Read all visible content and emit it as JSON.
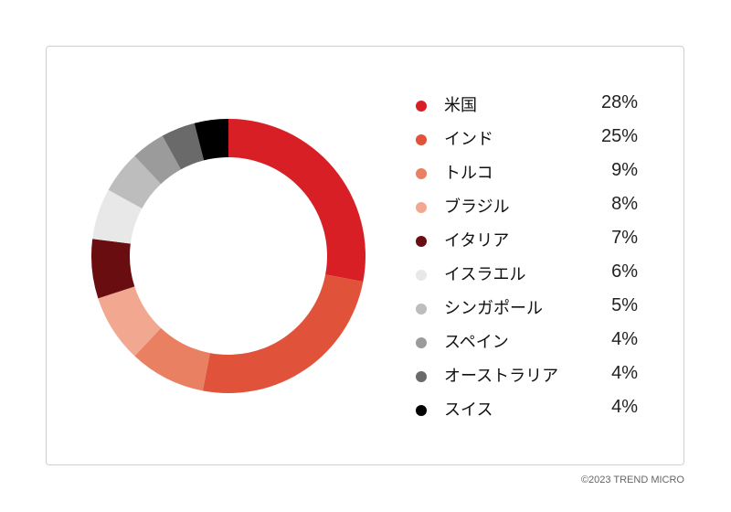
{
  "copyright": "©2023 TREND MICRO",
  "chart_data": {
    "type": "pie",
    "categories": [
      "米国",
      "インド",
      "トルコ",
      "ブラジル",
      "イタリア",
      "イスラエル",
      "シンガポール",
      "スペイン",
      "オーストラリア",
      "スイス"
    ],
    "values": [
      28,
      25,
      9,
      8,
      7,
      6,
      5,
      4,
      4,
      4
    ],
    "value_labels": [
      "28%",
      "25%",
      "9%",
      "8%",
      "7%",
      "6%",
      "5%",
      "4%",
      "4%",
      "4%"
    ],
    "colors": [
      "#d81f26",
      "#e0533a",
      "#e98062",
      "#f2a890",
      "#690d10",
      "#e8e8e8",
      "#bdbdbd",
      "#9b9b9b",
      "#6a6a6a",
      "#000000"
    ],
    "style": "donut",
    "legend_position": "right"
  }
}
